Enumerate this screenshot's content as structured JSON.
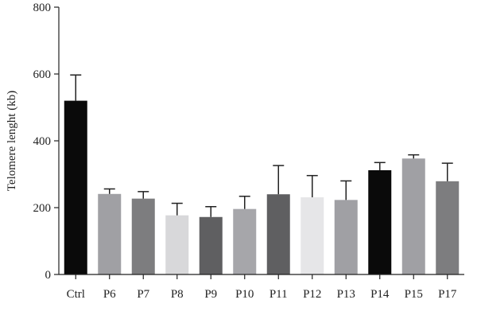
{
  "chart_data": {
    "type": "bar",
    "title": "",
    "xlabel": "",
    "ylabel": "Telomere lenght (kb)",
    "ylim": [
      0,
      800
    ],
    "yticks": [
      0,
      200,
      400,
      600,
      800
    ],
    "grid": false,
    "categories": [
      "Ctrl",
      "P6",
      "P7",
      "P8",
      "P9",
      "P10",
      "P11",
      "P12",
      "P13",
      "P14",
      "P15",
      "P17"
    ],
    "values": [
      520,
      241,
      227,
      177,
      172,
      196,
      240,
      231,
      223,
      312,
      347,
      279
    ],
    "error": [
      77,
      15,
      21,
      36,
      31,
      38,
      86,
      65,
      57,
      23,
      11,
      54
    ],
    "colors": [
      "#0a0a0a",
      "#a0a0a4",
      "#7d7d7f",
      "#d8d8da",
      "#5f5f61",
      "#a6a6aa",
      "#5f5f61",
      "#e6e6e8",
      "#a0a0a4",
      "#0a0a0a",
      "#a0a0a4",
      "#7d7d7f"
    ]
  }
}
